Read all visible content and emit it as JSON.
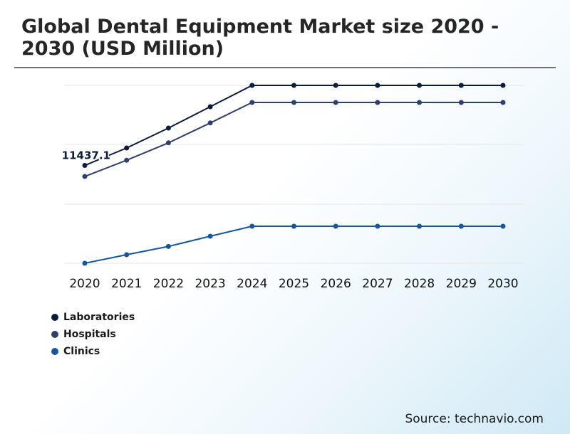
{
  "title": "Global Dental Equipment Market size 2020 - 2030 (USD Million)",
  "source": "Source: technavio.com",
  "colors": {
    "laboratories": "#0b1d3a",
    "hospitals": "#2f3f6e",
    "clinics": "#1457a0",
    "grid": "#e6e6e6"
  },
  "chart_data": {
    "type": "line",
    "categories": [
      "2020",
      "2021",
      "2022",
      "2023",
      "2024",
      "2025",
      "2026",
      "2027",
      "2028",
      "2029",
      "2030"
    ],
    "series": [
      {
        "name": "Laboratories",
        "color": "#0b1d3a",
        "values": [
          11437.1,
          12050,
          12750,
          13500,
          14250,
          14250,
          14250,
          14250,
          14250,
          14250,
          14250
        ]
      },
      {
        "name": "Hospitals",
        "color": "#2f3f6e",
        "values": [
          11050,
          11620,
          12230,
          12930,
          13650,
          13650,
          13650,
          13650,
          13650,
          13650,
          13650
        ]
      },
      {
        "name": "Clinics",
        "color": "#1457a0",
        "values": [
          8000,
          8300,
          8590,
          8950,
          9300,
          9300,
          9300,
          9300,
          9300,
          9300,
          9300
        ]
      }
    ],
    "data_labels": [
      {
        "series": "Laboratories",
        "category": "2020",
        "text": "11437.1"
      }
    ],
    "xlabel": "",
    "ylabel": "",
    "ylim": [
      8000,
      14500
    ],
    "grid": true,
    "legend_position": "bottom-left"
  }
}
